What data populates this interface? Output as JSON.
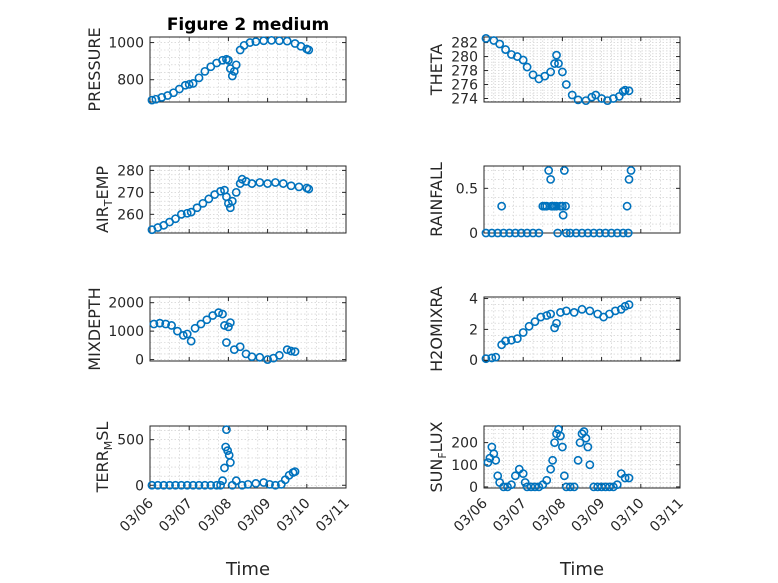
{
  "chart_data": [
    {
      "type": "scatter",
      "title": "Figure 2 medium",
      "ylabel": "PRESSURE",
      "ylabel_sub": "",
      "xlabel": "",
      "ylim": [
        680,
        1030
      ],
      "yticks": [
        800,
        1000
      ],
      "xlim": [
        "03/06",
        "03/11"
      ],
      "xticks": [
        "03/06",
        "03/07",
        "03/08",
        "03/09",
        "03/10",
        "03/11"
      ],
      "show_xticklabels": false,
      "grid": true,
      "color": "#0072bd",
      "points": [
        [
          0.05,
          690
        ],
        [
          0.15,
          695
        ],
        [
          0.3,
          705
        ],
        [
          0.45,
          715
        ],
        [
          0.6,
          730
        ],
        [
          0.75,
          750
        ],
        [
          0.9,
          770
        ],
        [
          1.0,
          775
        ],
        [
          1.1,
          780
        ],
        [
          1.25,
          810
        ],
        [
          1.4,
          845
        ],
        [
          1.55,
          870
        ],
        [
          1.7,
          890
        ],
        [
          1.85,
          905
        ],
        [
          1.95,
          910
        ],
        [
          2.0,
          905
        ],
        [
          2.05,
          860
        ],
        [
          2.1,
          820
        ],
        [
          2.15,
          845
        ],
        [
          2.2,
          880
        ],
        [
          2.3,
          960
        ],
        [
          2.4,
          985
        ],
        [
          2.55,
          1000
        ],
        [
          2.7,
          1005
        ],
        [
          2.9,
          1010
        ],
        [
          3.1,
          1012
        ],
        [
          3.3,
          1010
        ],
        [
          3.5,
          1008
        ],
        [
          3.7,
          995
        ],
        [
          3.85,
          980
        ],
        [
          4.0,
          965
        ],
        [
          4.05,
          960
        ]
      ]
    },
    {
      "type": "scatter",
      "title": "",
      "ylabel": "THETA",
      "ylabel_sub": "",
      "xlabel": "",
      "ylim": [
        273.5,
        282.8
      ],
      "yticks": [
        274,
        276,
        278,
        280,
        282
      ],
      "xlim": [
        "03/06",
        "03/11"
      ],
      "xticks": [
        "03/06",
        "03/07",
        "03/08",
        "03/09",
        "03/10",
        "03/11"
      ],
      "show_xticklabels": false,
      "grid": true,
      "color": "#0072bd",
      "points": [
        [
          0.05,
          282.6
        ],
        [
          0.25,
          282.3
        ],
        [
          0.4,
          281.8
        ],
        [
          0.55,
          281.0
        ],
        [
          0.7,
          280.3
        ],
        [
          0.85,
          280.0
        ],
        [
          1.0,
          279.5
        ],
        [
          1.1,
          278.5
        ],
        [
          1.25,
          277.4
        ],
        [
          1.4,
          276.8
        ],
        [
          1.55,
          277.2
        ],
        [
          1.7,
          277.8
        ],
        [
          1.8,
          279.0
        ],
        [
          1.85,
          280.2
        ],
        [
          1.9,
          279.0
        ],
        [
          2.0,
          277.8
        ],
        [
          2.1,
          276.0
        ],
        [
          2.25,
          274.5
        ],
        [
          2.4,
          273.8
        ],
        [
          2.6,
          273.7
        ],
        [
          2.75,
          274.2
        ],
        [
          2.85,
          274.5
        ],
        [
          3.0,
          274.0
        ],
        [
          3.15,
          273.7
        ],
        [
          3.3,
          274.0
        ],
        [
          3.45,
          274.3
        ],
        [
          3.55,
          275.0
        ],
        [
          3.6,
          275.2
        ],
        [
          3.7,
          275.1
        ]
      ]
    },
    {
      "type": "scatter",
      "title": "",
      "ylabel": "AIR",
      "ylabel_sub": "T",
      "ylabel_after": "EMP",
      "xlabel": "",
      "ylim": [
        251.5,
        282
      ],
      "yticks": [
        260,
        270,
        280
      ],
      "xlim": [
        "03/06",
        "03/11"
      ],
      "xticks": [
        "03/06",
        "03/07",
        "03/08",
        "03/09",
        "03/10",
        "03/11"
      ],
      "show_xticklabels": false,
      "grid": true,
      "color": "#0072bd",
      "points": [
        [
          0.05,
          253
        ],
        [
          0.2,
          254
        ],
        [
          0.35,
          255
        ],
        [
          0.5,
          256.5
        ],
        [
          0.65,
          258
        ],
        [
          0.8,
          260
        ],
        [
          0.95,
          260.5
        ],
        [
          1.05,
          261
        ],
        [
          1.2,
          263
        ],
        [
          1.35,
          265
        ],
        [
          1.5,
          267
        ],
        [
          1.65,
          269
        ],
        [
          1.8,
          270.5
        ],
        [
          1.9,
          271
        ],
        [
          1.95,
          268
        ],
        [
          2.0,
          265
        ],
        [
          2.05,
          263
        ],
        [
          2.1,
          266
        ],
        [
          2.2,
          270
        ],
        [
          2.3,
          274
        ],
        [
          2.35,
          276
        ],
        [
          2.45,
          275
        ],
        [
          2.6,
          274
        ],
        [
          2.8,
          274.5
        ],
        [
          3.0,
          274
        ],
        [
          3.2,
          274.5
        ],
        [
          3.4,
          274
        ],
        [
          3.6,
          273
        ],
        [
          3.8,
          272.5
        ],
        [
          4.0,
          272
        ],
        [
          4.05,
          271.5
        ]
      ]
    },
    {
      "type": "scatter",
      "title": "",
      "ylabel": "RAINFALL",
      "ylabel_sub": "",
      "xlabel": "",
      "ylim": [
        0,
        0.75
      ],
      "yticks": [
        0,
        0.5
      ],
      "xlim": [
        "03/06",
        "03/11"
      ],
      "xticks": [
        "03/06",
        "03/07",
        "03/08",
        "03/09",
        "03/10",
        "03/11"
      ],
      "show_xticklabels": false,
      "grid": true,
      "color": "#0072bd",
      "points": [
        [
          0.05,
          0
        ],
        [
          0.2,
          0
        ],
        [
          0.35,
          0
        ],
        [
          0.45,
          0.3
        ],
        [
          0.5,
          0
        ],
        [
          0.65,
          0
        ],
        [
          0.8,
          0
        ],
        [
          0.95,
          0
        ],
        [
          1.1,
          0
        ],
        [
          1.25,
          0
        ],
        [
          1.4,
          0
        ],
        [
          1.5,
          0.3
        ],
        [
          1.55,
          0.3
        ],
        [
          1.6,
          0.3
        ],
        [
          1.65,
          0.7
        ],
        [
          1.7,
          0.6
        ],
        [
          1.72,
          0.3
        ],
        [
          1.75,
          0.3
        ],
        [
          1.8,
          0.3
        ],
        [
          1.85,
          0.3
        ],
        [
          1.88,
          0
        ],
        [
          1.95,
          0.3
        ],
        [
          2.0,
          0.3
        ],
        [
          2.02,
          0.2
        ],
        [
          2.05,
          0.7
        ],
        [
          2.08,
          0.3
        ],
        [
          2.1,
          0
        ],
        [
          2.2,
          0
        ],
        [
          2.35,
          0
        ],
        [
          2.5,
          0
        ],
        [
          2.65,
          0
        ],
        [
          2.8,
          0
        ],
        [
          2.95,
          0
        ],
        [
          3.1,
          0
        ],
        [
          3.25,
          0
        ],
        [
          3.4,
          0
        ],
        [
          3.55,
          0
        ],
        [
          3.65,
          0.3
        ],
        [
          3.7,
          0.6
        ],
        [
          3.75,
          0.7
        ],
        [
          3.68,
          0
        ]
      ]
    },
    {
      "type": "scatter",
      "title": "",
      "ylabel": "MIXDEPTH",
      "ylabel_sub": "",
      "xlabel": "",
      "ylim": [
        -50,
        2200
      ],
      "yticks": [
        0,
        1000,
        2000
      ],
      "xlim": [
        "03/06",
        "03/11"
      ],
      "xticks": [
        "03/06",
        "03/07",
        "03/08",
        "03/09",
        "03/10",
        "03/11"
      ],
      "show_xticklabels": false,
      "grid": true,
      "color": "#0072bd",
      "points": [
        [
          0.1,
          1250
        ],
        [
          0.25,
          1280
        ],
        [
          0.4,
          1250
        ],
        [
          0.55,
          1200
        ],
        [
          0.7,
          1000
        ],
        [
          0.85,
          850
        ],
        [
          0.95,
          900
        ],
        [
          1.05,
          650
        ],
        [
          1.15,
          1100
        ],
        [
          1.3,
          1250
        ],
        [
          1.45,
          1400
        ],
        [
          1.6,
          1550
        ],
        [
          1.75,
          1650
        ],
        [
          1.85,
          1600
        ],
        [
          1.9,
          1200
        ],
        [
          1.95,
          600
        ],
        [
          2.0,
          1150
        ],
        [
          2.05,
          1300
        ],
        [
          2.15,
          350
        ],
        [
          2.3,
          450
        ],
        [
          2.45,
          200
        ],
        [
          2.6,
          100
        ],
        [
          2.8,
          80
        ],
        [
          3.0,
          0
        ],
        [
          3.15,
          50
        ],
        [
          3.3,
          150
        ],
        [
          3.5,
          350
        ],
        [
          3.6,
          300
        ],
        [
          3.7,
          280
        ]
      ]
    },
    {
      "type": "scatter",
      "title": "",
      "ylabel": "H2OMIXRA",
      "ylabel_sub": "",
      "xlabel": "",
      "ylim": [
        -0.05,
        4.1
      ],
      "yticks": [
        0,
        2,
        4
      ],
      "xlim": [
        "03/06",
        "03/11"
      ],
      "xticks": [
        "03/06",
        "03/07",
        "03/08",
        "03/09",
        "03/10",
        "03/11"
      ],
      "show_xticklabels": false,
      "grid": true,
      "color": "#0072bd",
      "points": [
        [
          0.05,
          0.1
        ],
        [
          0.2,
          0.15
        ],
        [
          0.3,
          0.2
        ],
        [
          0.45,
          1.0
        ],
        [
          0.55,
          1.25
        ],
        [
          0.7,
          1.3
        ],
        [
          0.85,
          1.4
        ],
        [
          1.0,
          1.8
        ],
        [
          1.15,
          2.2
        ],
        [
          1.3,
          2.5
        ],
        [
          1.45,
          2.8
        ],
        [
          1.6,
          2.9
        ],
        [
          1.7,
          3.0
        ],
        [
          1.8,
          2.1
        ],
        [
          1.85,
          2.4
        ],
        [
          1.95,
          3.1
        ],
        [
          2.1,
          3.2
        ],
        [
          2.3,
          3.1
        ],
        [
          2.5,
          3.3
        ],
        [
          2.7,
          3.2
        ],
        [
          2.9,
          3.0
        ],
        [
          3.05,
          2.8
        ],
        [
          3.2,
          3.0
        ],
        [
          3.35,
          3.2
        ],
        [
          3.5,
          3.3
        ],
        [
          3.6,
          3.5
        ],
        [
          3.7,
          3.6
        ]
      ]
    },
    {
      "type": "scatter",
      "title": "",
      "ylabel": "TERR",
      "ylabel_sub": "M",
      "ylabel_after": "SL",
      "xlabel": "Time",
      "ylim": [
        -30,
        650
      ],
      "yticks": [
        0,
        500
      ],
      "xlim": [
        "03/06",
        "03/11"
      ],
      "xticks": [
        "03/06",
        "03/07",
        "03/08",
        "03/09",
        "03/10",
        "03/11"
      ],
      "show_xticklabels": true,
      "grid": true,
      "color": "#0072bd",
      "points": [
        [
          0.05,
          0
        ],
        [
          0.2,
          0
        ],
        [
          0.35,
          0
        ],
        [
          0.5,
          0
        ],
        [
          0.65,
          0
        ],
        [
          0.8,
          0
        ],
        [
          0.95,
          0
        ],
        [
          1.1,
          0
        ],
        [
          1.25,
          0
        ],
        [
          1.4,
          0
        ],
        [
          1.55,
          0
        ],
        [
          1.7,
          0
        ],
        [
          1.8,
          0
        ],
        [
          1.85,
          50
        ],
        [
          1.9,
          190
        ],
        [
          1.93,
          420
        ],
        [
          1.95,
          610
        ],
        [
          1.98,
          380
        ],
        [
          2.02,
          330
        ],
        [
          2.05,
          250
        ],
        [
          2.1,
          0
        ],
        [
          2.2,
          50
        ],
        [
          2.35,
          0
        ],
        [
          2.5,
          10
        ],
        [
          2.7,
          20
        ],
        [
          2.9,
          30
        ],
        [
          3.05,
          10
        ],
        [
          3.2,
          0
        ],
        [
          3.35,
          10
        ],
        [
          3.45,
          60
        ],
        [
          3.55,
          110
        ],
        [
          3.65,
          140
        ],
        [
          3.7,
          150
        ]
      ]
    },
    {
      "type": "scatter",
      "title": "",
      "ylabel": "SUN",
      "ylabel_sub": "F",
      "ylabel_after": "LUX",
      "xlabel": "Time",
      "ylim": [
        -5,
        275
      ],
      "yticks": [
        0,
        100,
        200
      ],
      "xlim": [
        "03/06",
        "03/11"
      ],
      "xticks": [
        "03/06",
        "03/07",
        "03/08",
        "03/09",
        "03/10",
        "03/11"
      ],
      "show_xticklabels": true,
      "grid": true,
      "color": "#0072bd",
      "points": [
        [
          0.1,
          110
        ],
        [
          0.15,
          130
        ],
        [
          0.2,
          180
        ],
        [
          0.25,
          150
        ],
        [
          0.3,
          120
        ],
        [
          0.35,
          50
        ],
        [
          0.4,
          20
        ],
        [
          0.5,
          0
        ],
        [
          0.6,
          0
        ],
        [
          0.7,
          10
        ],
        [
          0.8,
          50
        ],
        [
          0.9,
          80
        ],
        [
          1.0,
          60
        ],
        [
          1.05,
          20
        ],
        [
          1.1,
          0
        ],
        [
          1.2,
          0
        ],
        [
          1.3,
          0
        ],
        [
          1.4,
          0
        ],
        [
          1.5,
          10
        ],
        [
          1.6,
          30
        ],
        [
          1.7,
          80
        ],
        [
          1.75,
          120
        ],
        [
          1.8,
          200
        ],
        [
          1.85,
          240
        ],
        [
          1.9,
          260
        ],
        [
          1.95,
          230
        ],
        [
          2.0,
          180
        ],
        [
          2.05,
          50
        ],
        [
          2.1,
          0
        ],
        [
          2.2,
          0
        ],
        [
          2.3,
          0
        ],
        [
          2.4,
          120
        ],
        [
          2.45,
          200
        ],
        [
          2.5,
          240
        ],
        [
          2.55,
          250
        ],
        [
          2.6,
          220
        ],
        [
          2.65,
          180
        ],
        [
          2.7,
          100
        ],
        [
          2.8,
          0
        ],
        [
          2.9,
          0
        ],
        [
          3.0,
          0
        ],
        [
          3.1,
          0
        ],
        [
          3.2,
          0
        ],
        [
          3.3,
          0
        ],
        [
          3.4,
          10
        ],
        [
          3.5,
          60
        ],
        [
          3.6,
          40
        ],
        [
          3.7,
          40
        ]
      ]
    }
  ]
}
